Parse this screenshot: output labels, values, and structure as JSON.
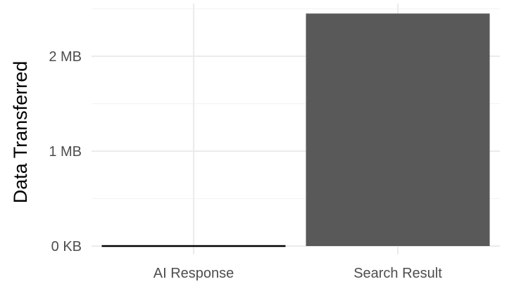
{
  "chart_data": {
    "type": "bar",
    "title": "",
    "xlabel": "",
    "ylabel": "Data Transferred",
    "categories": [
      "AI Response",
      "Search Result"
    ],
    "values": [
      0.0,
      2.45
    ],
    "value_unit": "MB",
    "ylim": [
      0,
      2.5
    ],
    "yticks": [
      {
        "value": 0,
        "label": "0 KB"
      },
      {
        "value": 1,
        "label": "1 MB"
      },
      {
        "value": 2,
        "label": "2 MB"
      }
    ],
    "grid": true,
    "legend": "none",
    "colors": {
      "bar": "#595959",
      "zero_bar_stroke": "#000000",
      "grid_major": "#ebebeb",
      "grid_minor": "#f4f4f4",
      "background": "#ffffff"
    }
  }
}
